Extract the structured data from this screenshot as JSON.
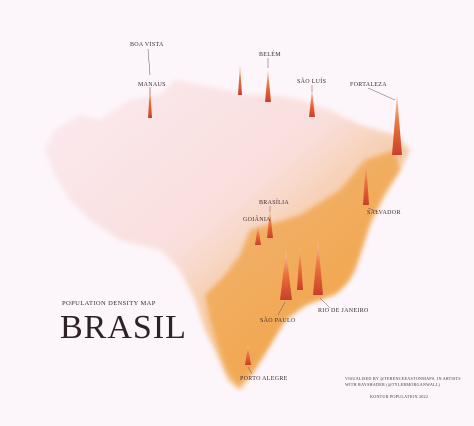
{
  "map": {
    "cities": [
      "BOA VISTA",
      "BELÉM",
      "MANAUS",
      "SÃO LUÍS",
      "FORTALEZA",
      "BRASÍLIA",
      "GOIÂNIA",
      "SALVADOR",
      "RIO DE JANEIRO",
      "SÃO PAULO",
      "PORTO ALEGRE"
    ],
    "subtitle": "POPULATION DENSITY MAP",
    "title": "BRASIL",
    "credits": [
      "VISUALISED BY @TERENCEEASTONMAPS, IN ARTISTS",
      "WITH RAYSHADER (@TYLERMORGANWALL)",
      "KONTUR POPULATION 2022"
    ]
  }
}
